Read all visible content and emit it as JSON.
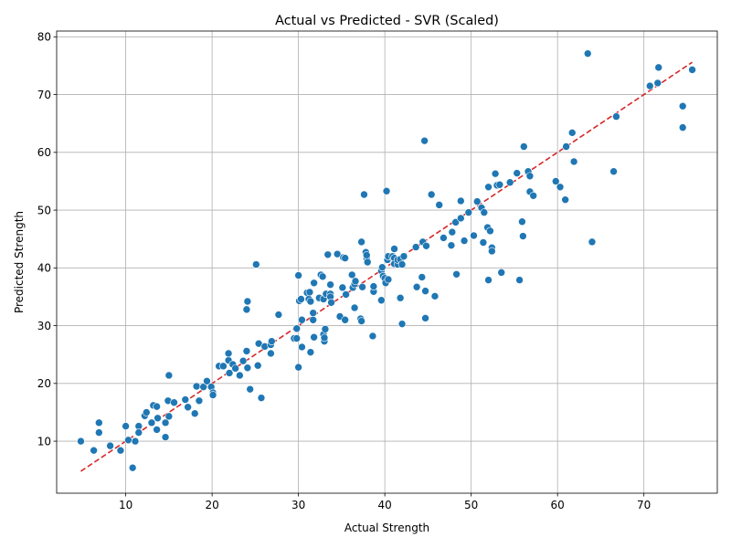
{
  "chart_data": {
    "type": "scatter",
    "title": "Actual vs Predicted - SVR (Scaled)",
    "xlabel": "Actual Strength",
    "ylabel": "Predicted Strength",
    "xlim": [
      2.0,
      78.5
    ],
    "ylim": [
      1.0,
      81.0
    ],
    "xticks": [
      10,
      20,
      30,
      40,
      50,
      60,
      70
    ],
    "yticks": [
      10,
      20,
      30,
      40,
      50,
      60,
      70,
      80
    ],
    "grid": true,
    "colors": {
      "points": "#1f77b4",
      "ideal_line": "#d62728"
    },
    "ideal_line": {
      "x": [
        4.8,
        75.6
      ],
      "y": [
        4.8,
        75.6
      ]
    },
    "points": [
      [
        4.8,
        10.0
      ],
      [
        6.3,
        8.4
      ],
      [
        6.9,
        13.2
      ],
      [
        6.9,
        11.5
      ],
      [
        8.2,
        9.2
      ],
      [
        9.4,
        8.4
      ],
      [
        10.0,
        12.6
      ],
      [
        10.3,
        10.2
      ],
      [
        10.8,
        5.4
      ],
      [
        11.1,
        10.0
      ],
      [
        11.5,
        12.6
      ],
      [
        11.5,
        11.5
      ],
      [
        12.2,
        14.4
      ],
      [
        12.4,
        15.0
      ],
      [
        13.0,
        13.2
      ],
      [
        13.2,
        16.2
      ],
      [
        13.6,
        16.0
      ],
      [
        13.6,
        12.0
      ],
      [
        13.7,
        14.0
      ],
      [
        14.6,
        10.7
      ],
      [
        14.6,
        13.2
      ],
      [
        14.9,
        17.0
      ],
      [
        15.0,
        21.4
      ],
      [
        15.0,
        14.3
      ],
      [
        15.6,
        16.7
      ],
      [
        16.9,
        17.2
      ],
      [
        17.2,
        15.9
      ],
      [
        18.0,
        14.8
      ],
      [
        18.2,
        19.5
      ],
      [
        18.5,
        17.0
      ],
      [
        19.0,
        19.4
      ],
      [
        19.4,
        20.4
      ],
      [
        19.9,
        19.4
      ],
      [
        20.1,
        18.4
      ],
      [
        20.1,
        18.0
      ],
      [
        20.8,
        23.0
      ],
      [
        21.3,
        23.0
      ],
      [
        21.9,
        24.0
      ],
      [
        21.9,
        25.2
      ],
      [
        22.0,
        21.8
      ],
      [
        22.4,
        23.3
      ],
      [
        22.7,
        22.6
      ],
      [
        23.2,
        21.4
      ],
      [
        23.6,
        23.9
      ],
      [
        24.0,
        32.8
      ],
      [
        24.0,
        25.6
      ],
      [
        24.1,
        34.2
      ],
      [
        24.1,
        22.7
      ],
      [
        24.4,
        19.0
      ],
      [
        25.1,
        40.6
      ],
      [
        25.3,
        23.1
      ],
      [
        25.4,
        26.9
      ],
      [
        25.7,
        17.5
      ],
      [
        26.1,
        26.4
      ],
      [
        26.8,
        26.7
      ],
      [
        26.8,
        25.2
      ],
      [
        26.9,
        27.3
      ],
      [
        27.7,
        31.9
      ],
      [
        29.5,
        27.8
      ],
      [
        29.8,
        29.5
      ],
      [
        29.8,
        27.8
      ],
      [
        30.0,
        22.8
      ],
      [
        30.0,
        38.7
      ],
      [
        30.1,
        34.3
      ],
      [
        30.3,
        34.6
      ],
      [
        30.4,
        31.0
      ],
      [
        30.4,
        26.3
      ],
      [
        31.0,
        35.7
      ],
      [
        31.2,
        34.6
      ],
      [
        31.3,
        35.8
      ],
      [
        31.4,
        34.2
      ],
      [
        31.4,
        25.4
      ],
      [
        31.7,
        31.0
      ],
      [
        31.7,
        32.2
      ],
      [
        31.8,
        37.4
      ],
      [
        31.8,
        28.0
      ],
      [
        32.4,
        34.8
      ],
      [
        32.6,
        38.8
      ],
      [
        32.8,
        38.5
      ],
      [
        32.9,
        34.6
      ],
      [
        32.9,
        28.5
      ],
      [
        33.0,
        27.3
      ],
      [
        33.0,
        27.9
      ],
      [
        33.1,
        29.4
      ],
      [
        33.2,
        35.5
      ],
      [
        33.4,
        42.3
      ],
      [
        33.7,
        35.5
      ],
      [
        33.7,
        35.0
      ],
      [
        33.7,
        37.1
      ],
      [
        33.8,
        34.0
      ],
      [
        34.5,
        42.4
      ],
      [
        34.8,
        31.6
      ],
      [
        35.1,
        36.6
      ],
      [
        35.2,
        41.8
      ],
      [
        35.4,
        41.7
      ],
      [
        35.4,
        31.0
      ],
      [
        35.5,
        35.4
      ],
      [
        36.2,
        38.8
      ],
      [
        36.3,
        36.6
      ],
      [
        36.5,
        33.1
      ],
      [
        36.5,
        37.2
      ],
      [
        36.6,
        37.7
      ],
      [
        37.2,
        31.2
      ],
      [
        37.3,
        44.5
      ],
      [
        37.3,
        30.8
      ],
      [
        37.4,
        36.7
      ],
      [
        37.6,
        52.7
      ],
      [
        37.8,
        42.7
      ],
      [
        37.9,
        41.7
      ],
      [
        37.9,
        42.2
      ],
      [
        38.0,
        41.0
      ],
      [
        38.6,
        28.2
      ],
      [
        38.7,
        35.9
      ],
      [
        38.7,
        36.8
      ],
      [
        39.6,
        39.5
      ],
      [
        39.6,
        34.4
      ],
      [
        39.7,
        40.1
      ],
      [
        39.8,
        38.6
      ],
      [
        40.0,
        38.2
      ],
      [
        40.1,
        37.4
      ],
      [
        40.2,
        53.3
      ],
      [
        40.3,
        41.4
      ],
      [
        40.4,
        42.0
      ],
      [
        40.4,
        38.0
      ],
      [
        40.9,
        42.0
      ],
      [
        41.1,
        43.3
      ],
      [
        41.1,
        41.7
      ],
      [
        41.1,
        40.7
      ],
      [
        41.5,
        40.6
      ],
      [
        41.5,
        41.4
      ],
      [
        41.8,
        41.5
      ],
      [
        41.8,
        34.8
      ],
      [
        42.0,
        30.3
      ],
      [
        42.0,
        40.6
      ],
      [
        42.2,
        42.0
      ],
      [
        43.6,
        43.6
      ],
      [
        43.7,
        36.7
      ],
      [
        44.3,
        38.4
      ],
      [
        44.4,
        44.5
      ],
      [
        44.6,
        62.0
      ],
      [
        44.7,
        31.3
      ],
      [
        44.7,
        36.0
      ],
      [
        44.8,
        43.8
      ],
      [
        45.4,
        52.7
      ],
      [
        45.8,
        35.1
      ],
      [
        46.3,
        50.9
      ],
      [
        46.8,
        45.2
      ],
      [
        47.7,
        43.9
      ],
      [
        47.8,
        46.2
      ],
      [
        48.2,
        47.9
      ],
      [
        48.3,
        38.9
      ],
      [
        48.8,
        51.6
      ],
      [
        48.8,
        48.6
      ],
      [
        49.2,
        44.7
      ],
      [
        49.7,
        49.6
      ],
      [
        50.3,
        45.6
      ],
      [
        50.7,
        51.5
      ],
      [
        51.2,
        50.4
      ],
      [
        51.4,
        44.4
      ],
      [
        51.5,
        49.6
      ],
      [
        51.9,
        47.0
      ],
      [
        52.0,
        37.9
      ],
      [
        52.0,
        54.0
      ],
      [
        52.2,
        46.4
      ],
      [
        52.4,
        43.5
      ],
      [
        52.4,
        42.9
      ],
      [
        52.8,
        56.3
      ],
      [
        53.0,
        54.3
      ],
      [
        53.3,
        54.4
      ],
      [
        53.5,
        39.2
      ],
      [
        54.5,
        54.8
      ],
      [
        55.3,
        56.4
      ],
      [
        55.6,
        37.9
      ],
      [
        55.9,
        48.0
      ],
      [
        56.0,
        45.5
      ],
      [
        56.1,
        61.0
      ],
      [
        56.6,
        56.7
      ],
      [
        56.8,
        53.2
      ],
      [
        56.8,
        55.9
      ],
      [
        57.2,
        52.5
      ],
      [
        59.8,
        55.0
      ],
      [
        60.3,
        54.0
      ],
      [
        60.9,
        51.8
      ],
      [
        61.0,
        61.0
      ],
      [
        61.7,
        63.4
      ],
      [
        61.9,
        58.4
      ],
      [
        63.5,
        77.1
      ],
      [
        64.0,
        44.5
      ],
      [
        66.5,
        56.7
      ],
      [
        66.8,
        66.2
      ],
      [
        70.7,
        71.5
      ],
      [
        71.6,
        72.0
      ],
      [
        71.7,
        74.7
      ],
      [
        74.5,
        68.0
      ],
      [
        74.5,
        64.3
      ],
      [
        75.6,
        74.3
      ]
    ]
  }
}
